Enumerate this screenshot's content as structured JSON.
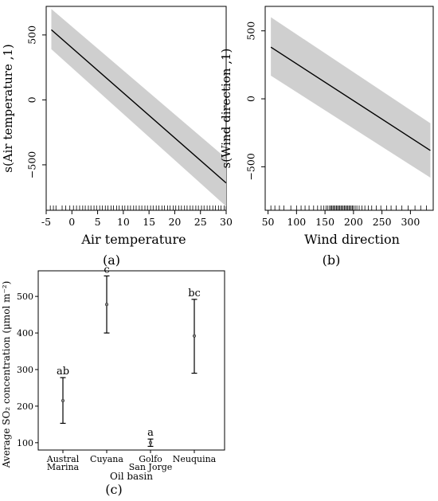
{
  "chart_data": [
    {
      "panel": "(a)",
      "type": "line",
      "xlabel": "Air temperature",
      "ylabel": "s(Air temperature ,1)",
      "xlim": [
        -5,
        30
      ],
      "ylim": [
        -850,
        720
      ],
      "xticks": [
        -5,
        0,
        5,
        10,
        15,
        20,
        25,
        30
      ],
      "yticks": [
        500,
        0,
        -500
      ],
      "ytick_labels": [
        "500",
        "0",
        "−500"
      ],
      "x": [
        -4,
        30
      ],
      "y": [
        540,
        -640
      ],
      "ci_upper": [
        700,
        -450
      ],
      "ci_lower": [
        390,
        -820
      ],
      "rug": [
        -4.2,
        -3.6,
        -3.1,
        -1.9,
        -1.2,
        -0.4,
        0.3,
        0.9,
        1.5,
        2.1,
        2.6,
        3.2,
        3.7,
        4.3,
        4.8,
        5.4,
        5.9,
        6.5,
        7.0,
        7.6,
        8.1,
        8.7,
        9.2,
        9.8,
        10.3,
        10.9,
        11.4,
        12.0,
        12.5,
        13.1,
        13.6,
        14.2,
        14.7,
        15.3,
        15.8,
        16.4,
        16.9,
        17.5,
        18.0,
        18.6,
        19.1,
        19.7,
        20.2,
        20.8,
        21.3,
        21.9,
        22.4,
        23.0,
        23.5,
        24.1,
        24.6,
        25.2,
        25.7,
        26.3,
        26.8,
        27.4,
        27.9,
        28.5,
        29.0,
        29.6
      ]
    },
    {
      "panel": "(b)",
      "type": "line",
      "xlabel": "Wind direction",
      "ylabel": "s(Wind direction ,1)",
      "xlim": [
        45,
        340
      ],
      "ylim": [
        -820,
        680
      ],
      "xticks": [
        50,
        100,
        150,
        200,
        250,
        300
      ],
      "yticks": [
        500,
        0,
        -500
      ],
      "ytick_labels": [
        "500",
        "0",
        "−500"
      ],
      "x": [
        55,
        335
      ],
      "y": [
        380,
        -380
      ],
      "ci_upper": [
        600,
        -180
      ],
      "ci_lower": [
        170,
        -580
      ],
      "rug": [
        55,
        62,
        70,
        78,
        90,
        100,
        108,
        115,
        122,
        130,
        137,
        143,
        148,
        152,
        155,
        158,
        160,
        162,
        164,
        166,
        168,
        170,
        172,
        174,
        176,
        178,
        180,
        182,
        184,
        186,
        188,
        190,
        192,
        194,
        196,
        198,
        200,
        203,
        206,
        210,
        215,
        220,
        226,
        232,
        240,
        248,
        258,
        266,
        275,
        285,
        296,
        308,
        318,
        328
      ]
    },
    {
      "panel": "(c)",
      "type": "errorbar",
      "xlabel": "Oil basin",
      "ylabel": "Average SO₂ concentration (μmol m⁻²)",
      "ylim": [
        80,
        570
      ],
      "yticks": [
        100,
        200,
        300,
        400,
        500
      ],
      "categories": [
        [
          "Austral",
          "Marina"
        ],
        [
          "Cuyana"
        ],
        [
          "Golfo",
          "San Jorge"
        ],
        [
          "Neuquina"
        ]
      ],
      "means": [
        215,
        478,
        100,
        392
      ],
      "upper": [
        278,
        556,
        110,
        492
      ],
      "lower": [
        153,
        400,
        90,
        290
      ],
      "letters": [
        "ab",
        "c",
        "a",
        "bc"
      ]
    }
  ],
  "captions": [
    "(a)",
    "(b)",
    "(c)"
  ]
}
